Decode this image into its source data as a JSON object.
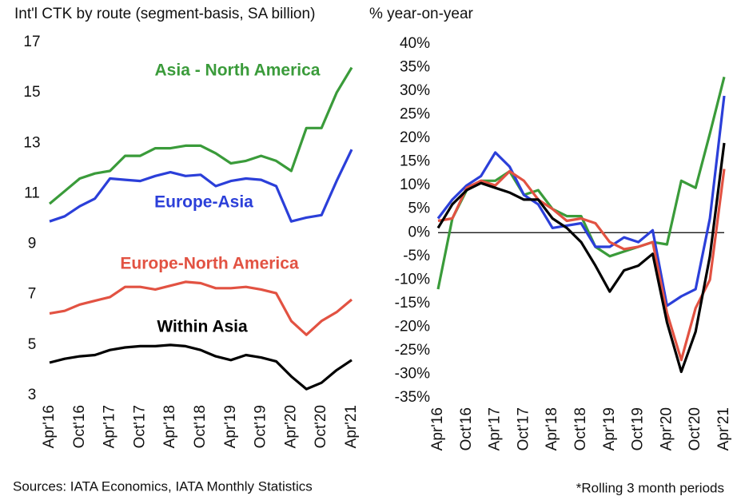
{
  "chart_data": [
    {
      "type": "line",
      "title": "Int'l CTK by route (segment-basis, SA billion)",
      "categories": [
        "Apr'16",
        null,
        "Oct'16",
        null,
        "Apr'17",
        null,
        "Oct'17",
        null,
        "Apr'18",
        null,
        "Oct'18",
        null,
        "Apr'19",
        null,
        "Oct'19",
        null,
        "Apr'20",
        null,
        "Oct'20",
        null,
        "Apr'21"
      ],
      "ylim": [
        3,
        17
      ],
      "yticks": [
        3,
        5,
        7,
        9,
        11,
        13,
        15,
        17
      ],
      "series": [
        {
          "name": "Asia - North America",
          "color": "#3a9b3a",
          "values": [
            10.6,
            11.1,
            11.6,
            11.8,
            11.9,
            12.5,
            12.5,
            12.8,
            12.8,
            12.9,
            12.9,
            12.6,
            12.2,
            12.3,
            12.5,
            12.3,
            11.9,
            13.6,
            13.6,
            15.0,
            16.0
          ]
        },
        {
          "name": "Europe-Asia",
          "color": "#2b3fd9",
          "values": [
            9.9,
            10.1,
            10.5,
            10.8,
            11.6,
            11.55,
            11.5,
            11.7,
            11.85,
            11.7,
            11.75,
            11.3,
            11.5,
            11.6,
            11.55,
            11.3,
            9.9,
            10.05,
            10.15,
            11.5,
            12.75
          ]
        },
        {
          "name": "Europe-North America",
          "color": "#e25242",
          "values": [
            6.25,
            6.35,
            6.6,
            6.75,
            6.9,
            7.3,
            7.3,
            7.2,
            7.35,
            7.5,
            7.45,
            7.25,
            7.25,
            7.3,
            7.2,
            7.05,
            5.95,
            5.4,
            5.95,
            6.3,
            6.8
          ]
        },
        {
          "name": "Within Asia",
          "color": "#000000",
          "values": [
            4.3,
            4.45,
            4.55,
            4.6,
            4.8,
            4.9,
            4.95,
            4.95,
            5.0,
            4.95,
            4.8,
            4.55,
            4.4,
            4.6,
            4.5,
            4.35,
            3.75,
            3.25,
            3.5,
            4.0,
            4.4
          ]
        }
      ]
    },
    {
      "type": "line",
      "title": "% year-on-year",
      "categories": [
        "Apr'16",
        null,
        "Oct'16",
        null,
        "Apr'17",
        null,
        "Oct'17",
        null,
        "Apr'18",
        null,
        "Oct'18",
        null,
        "Apr'19",
        null,
        "Oct'19",
        null,
        "Apr'20",
        null,
        "Oct'20",
        null,
        "Apr'21"
      ],
      "ylim": [
        -35,
        40
      ],
      "yticks": [
        {
          "value": -35,
          "label": "-35%"
        },
        {
          "value": -30,
          "label": "-30%"
        },
        {
          "value": -25,
          "label": "-25%"
        },
        {
          "value": -20,
          "label": "-20%"
        },
        {
          "value": -15,
          "label": "-15%"
        },
        {
          "value": -10,
          "label": "-10%"
        },
        {
          "value": -5,
          "label": "-5%"
        },
        {
          "value": 0,
          "label": "0%"
        },
        {
          "value": 5,
          "label": "5%"
        },
        {
          "value": 10,
          "label": "10%"
        },
        {
          "value": 15,
          "label": "15%"
        },
        {
          "value": 20,
          "label": "20%"
        },
        {
          "value": 25,
          "label": "25%"
        },
        {
          "value": 30,
          "label": "30%"
        },
        {
          "value": 35,
          "label": "35%"
        },
        {
          "value": 40,
          "label": "40%"
        }
      ],
      "series": [
        {
          "color": "#3a9b3a",
          "values": [
            -12,
            3,
            9,
            11,
            11,
            13,
            8,
            9,
            5,
            3.5,
            3.5,
            -3,
            -5,
            -4,
            -3,
            -2,
            -2.5,
            11,
            9.5,
            21,
            33
          ]
        },
        {
          "color": "#2b3fd9",
          "values": [
            3,
            7,
            10,
            12,
            17,
            14,
            8,
            6,
            1,
            1.5,
            2,
            -3,
            -3,
            -1,
            -2,
            0.5,
            -15.5,
            -13.5,
            -12,
            3,
            29
          ]
        },
        {
          "color": "#e25242",
          "values": [
            2.5,
            3,
            9.5,
            11,
            10,
            13,
            11,
            7,
            5,
            2.5,
            3,
            2,
            -2,
            -3.5,
            -3,
            -2,
            -17,
            -27,
            -16,
            -10,
            13.5
          ]
        },
        {
          "color": "#000000",
          "values": [
            1,
            6,
            9,
            10.5,
            9.5,
            8.5,
            7,
            7,
            3,
            1,
            -2,
            -7,
            -12.5,
            -8,
            -7,
            -4.5,
            -19,
            -29.5,
            -21,
            -5,
            19
          ]
        }
      ]
    }
  ],
  "sources": "Sources: IATA Economics, IATA Monthly Statistics",
  "note": "*Rolling 3 month periods"
}
